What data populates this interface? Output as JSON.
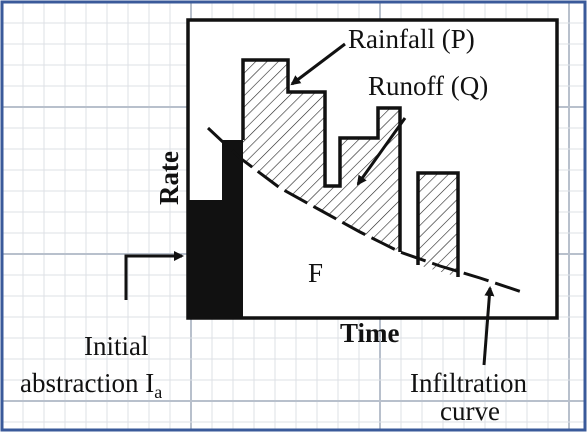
{
  "labels": {
    "rainfall": "Rainfall (P)",
    "runoff": "Runoff (Q)",
    "y_axis": "Rate",
    "x_axis": "Time",
    "infiltration_area": "F",
    "initial_abstraction": {
      "line1": "Initial",
      "line2": "abstraction I",
      "subscript": "a"
    },
    "infiltration_curve": {
      "line1": "Infiltration",
      "line2": "curve"
    }
  }
}
